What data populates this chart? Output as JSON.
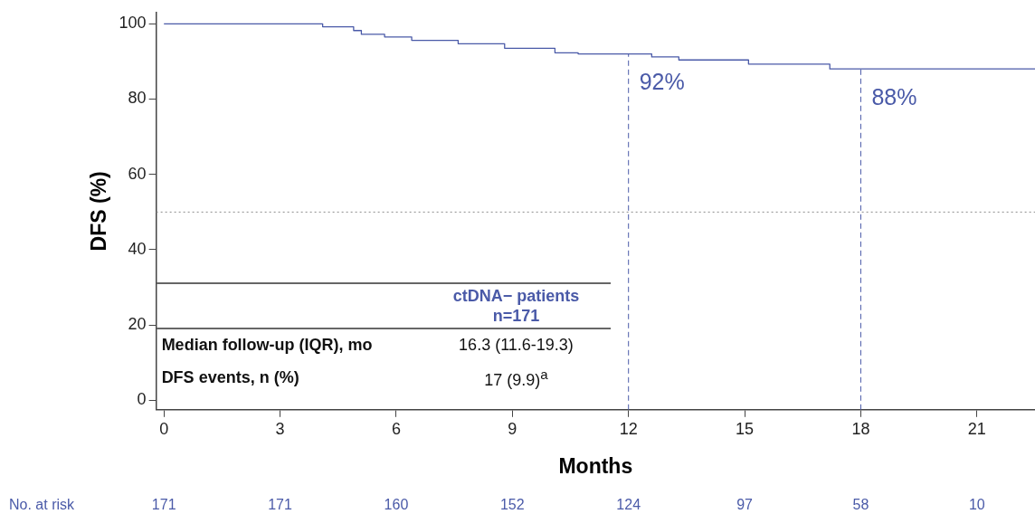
{
  "chart_data": {
    "type": "step",
    "xlabel": "Months",
    "ylabel": "DFS (%)",
    "series": [
      {
        "color": "#4a5aa8",
        "x": [
          0,
          4.1,
          4.9,
          5.1,
          5.7,
          6.4,
          7.6,
          8.8,
          10.1,
          10.7,
          12.6,
          13.3,
          15.1,
          17.2,
          22.5
        ],
        "values": [
          100,
          99.2,
          98.2,
          97.2,
          96.5,
          95.6,
          94.7,
          93.5,
          92.3,
          92,
          91.2,
          90.4,
          89.3,
          88,
          88
        ]
      }
    ],
    "xlim": [
      -0.2,
      22.5
    ],
    "xticks": [
      0,
      3,
      6,
      9,
      12,
      15,
      18,
      21
    ],
    "ylim": [
      -2.5,
      103
    ],
    "yticks": [
      0,
      20,
      40,
      60,
      80,
      100
    ],
    "grid": false,
    "legend": false,
    "marker": "none",
    "line_style": "solid",
    "ref_lines": [
      {
        "axis": "y",
        "value": 50,
        "color": "#8a8a8a",
        "line_style": "dotted"
      },
      {
        "axis": "x",
        "value": 12,
        "color": "#4a5aa8",
        "line_style": "dashed"
      },
      {
        "axis": "x",
        "value": 18,
        "color": "#4a5aa8",
        "line_style": "dashed"
      }
    ],
    "annotations": [
      {
        "text": "92%",
        "x": 12,
        "y": 92
      },
      {
        "text": "88%",
        "x": 18,
        "y": 88
      },
      "ctDNA− patients",
      "n=171",
      "Median follow-up (IQR), mo",
      "16.3 (11.6-19.3)",
      "DFS events, n (%)",
      "17 (9.9)$^{a}$",
      "No. at risk",
      "171",
      "171",
      "160",
      "152",
      "124",
      "97",
      "58",
      "10"
    ]
  }
}
